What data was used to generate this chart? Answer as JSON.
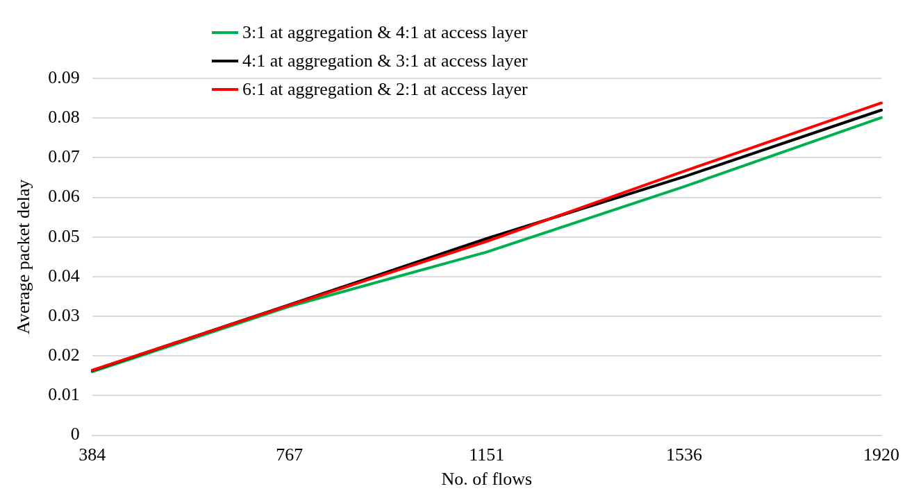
{
  "chart_data": {
    "type": "line",
    "xlabel": "No. of flows",
    "ylabel": "Average packet delay",
    "categories": [
      "384",
      "767",
      "1151",
      "1536",
      "1920"
    ],
    "series": [
      {
        "name": "3:1 at aggregation & 4:1 at access layer",
        "color": "#00b050",
        "values": [
          0.016,
          0.0325,
          0.0462,
          0.0627,
          0.0801
        ]
      },
      {
        "name": "4:1 at aggregation & 3:1 at access layer",
        "color": "#000000",
        "values": [
          0.0163,
          0.0329,
          0.0496,
          0.0652,
          0.082
        ]
      },
      {
        "name": "6:1 at aggregation & 2:1 at access layer",
        "color": "#ff0000",
        "values": [
          0.0164,
          0.0328,
          0.0489,
          0.0666,
          0.0838
        ]
      }
    ],
    "ylim": [
      0,
      0.09
    ],
    "yticks": [
      0,
      0.01,
      0.02,
      0.03,
      0.04,
      0.05,
      0.06,
      0.07,
      0.08,
      0.09
    ],
    "grid": "y",
    "legend": "top",
    "marker": "none",
    "line_style": "solid"
  }
}
